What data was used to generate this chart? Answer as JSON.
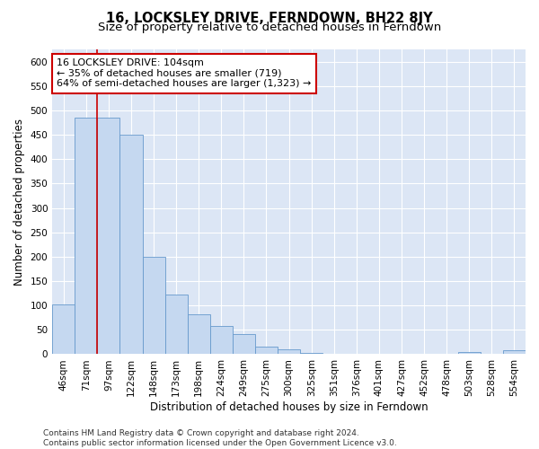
{
  "title": "16, LOCKSLEY DRIVE, FERNDOWN, BH22 8JY",
  "subtitle": "Size of property relative to detached houses in Ferndown",
  "xlabel": "Distribution of detached houses by size in Ferndown",
  "ylabel": "Number of detached properties",
  "categories": [
    "46sqm",
    "71sqm",
    "97sqm",
    "122sqm",
    "148sqm",
    "173sqm",
    "198sqm",
    "224sqm",
    "249sqm",
    "275sqm",
    "300sqm",
    "325sqm",
    "351sqm",
    "376sqm",
    "401sqm",
    "427sqm",
    "452sqm",
    "478sqm",
    "503sqm",
    "528sqm",
    "554sqm"
  ],
  "values": [
    103,
    485,
    485,
    450,
    200,
    123,
    82,
    58,
    41,
    15,
    10,
    2,
    1,
    0,
    0,
    0,
    0,
    0,
    5,
    0,
    8
  ],
  "bar_color": "#c5d8f0",
  "bar_edge_color": "#6699cc",
  "vline_x": 1.5,
  "vline_color": "#cc0000",
  "annotation_text": "16 LOCKSLEY DRIVE: 104sqm\n← 35% of detached houses are smaller (719)\n64% of semi-detached houses are larger (1,323) →",
  "annotation_box_color": "#ffffff",
  "annotation_box_edge_color": "#cc0000",
  "ylim": [
    0,
    625
  ],
  "yticks": [
    0,
    50,
    100,
    150,
    200,
    250,
    300,
    350,
    400,
    450,
    500,
    550,
    600
  ],
  "background_color": "#dce6f5",
  "footer_text": "Contains HM Land Registry data © Crown copyright and database right 2024.\nContains public sector information licensed under the Open Government Licence v3.0.",
  "title_fontsize": 10.5,
  "subtitle_fontsize": 9.5,
  "axis_label_fontsize": 8.5,
  "tick_fontsize": 7.5,
  "annotation_fontsize": 8,
  "footer_fontsize": 6.5
}
